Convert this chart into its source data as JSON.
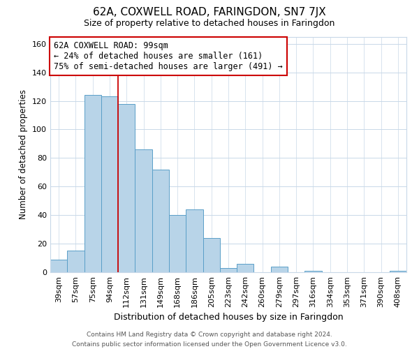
{
  "title": "62A, COXWELL ROAD, FARINGDON, SN7 7JX",
  "subtitle": "Size of property relative to detached houses in Faringdon",
  "xlabel": "Distribution of detached houses by size in Faringdon",
  "ylabel": "Number of detached properties",
  "bar_labels": [
    "39sqm",
    "57sqm",
    "75sqm",
    "94sqm",
    "112sqm",
    "131sqm",
    "149sqm",
    "168sqm",
    "186sqm",
    "205sqm",
    "223sqm",
    "242sqm",
    "260sqm",
    "279sqm",
    "297sqm",
    "316sqm",
    "334sqm",
    "353sqm",
    "371sqm",
    "390sqm",
    "408sqm"
  ],
  "bar_values": [
    9,
    15,
    124,
    123,
    118,
    86,
    72,
    40,
    44,
    24,
    3,
    6,
    0,
    4,
    0,
    1,
    0,
    0,
    0,
    0,
    1
  ],
  "bar_color": "#b8d4e8",
  "bar_edge_color": "#5a9fc8",
  "vline_color": "#cc0000",
  "ylim": [
    0,
    165
  ],
  "yticks": [
    0,
    20,
    40,
    60,
    80,
    100,
    120,
    140,
    160
  ],
  "annotation_title": "62A COXWELL ROAD: 99sqm",
  "annotation_line1": "← 24% of detached houses are smaller (161)",
  "annotation_line2": "75% of semi-detached houses are larger (491) →",
  "footer_line1": "Contains HM Land Registry data © Crown copyright and database right 2024.",
  "footer_line2": "Contains public sector information licensed under the Open Government Licence v3.0.",
  "background_color": "#ffffff",
  "grid_color": "#c8d8e8"
}
